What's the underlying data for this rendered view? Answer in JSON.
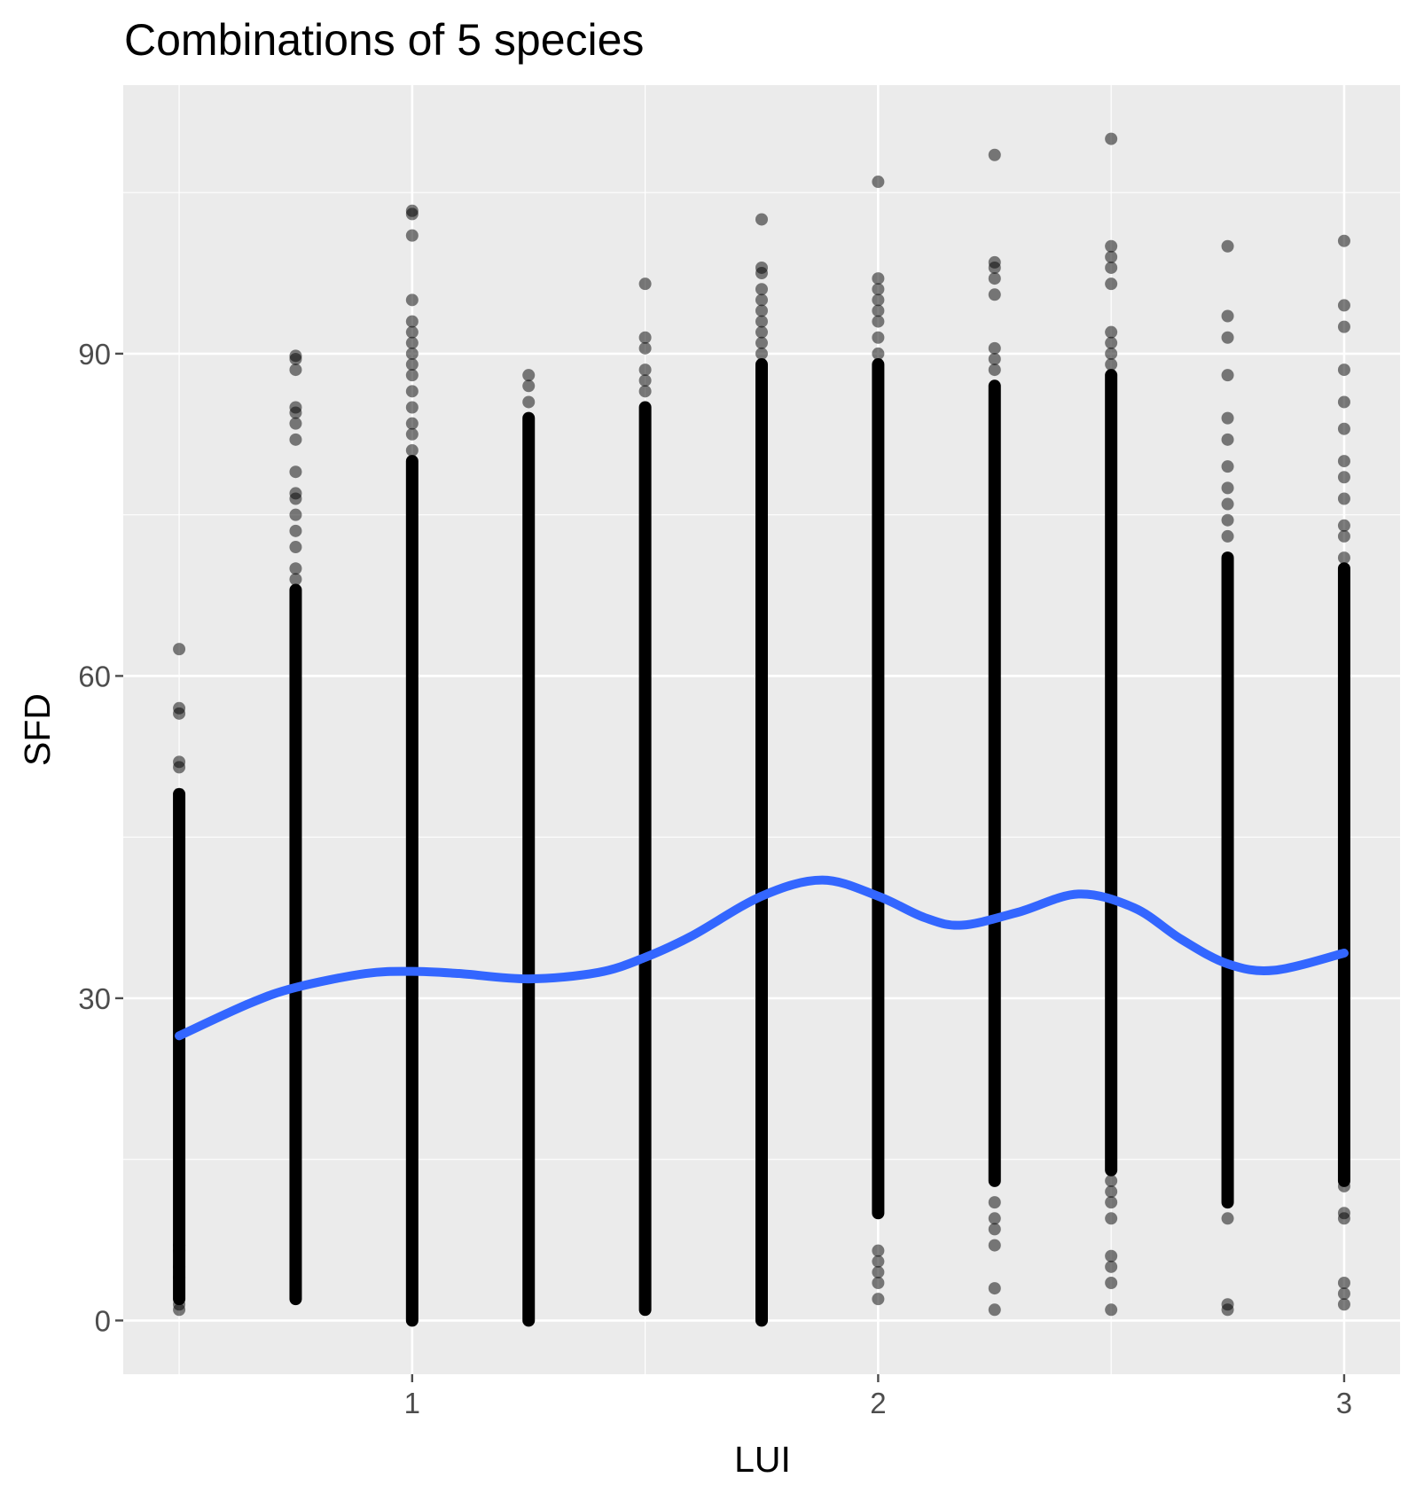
{
  "chart_data": {
    "type": "scatter",
    "title": "Combinations of 5 species",
    "xlabel": "LUI",
    "ylabel": "SFD",
    "xlim": [
      0.38,
      3.12
    ],
    "ylim": [
      -5,
      115
    ],
    "x_ticks": [
      1,
      2,
      3
    ],
    "y_ticks": [
      0,
      30,
      60,
      90
    ],
    "x_tick_labels": [
      "1",
      "2",
      "3"
    ],
    "y_tick_labels": [
      "0",
      "30",
      "60",
      "90"
    ],
    "grid": true,
    "colors": {
      "panel": "#ebebeb",
      "grid": "#ffffff",
      "points": "#000000",
      "smooth": "#3366ff",
      "tick": "#4d4d4d"
    },
    "point_alpha": 0.5,
    "point_columns": [
      {
        "x": 0.5,
        "dense_range": [
          2,
          49
        ],
        "outliers": [
          1,
          1.5,
          4,
          5,
          6.5,
          7,
          51.5,
          52,
          56.5,
          57,
          62.5
        ]
      },
      {
        "x": 0.75,
        "dense_range": [
          2,
          68
        ],
        "outliers": [
          69,
          70,
          72,
          73.5,
          75,
          76.5,
          77,
          79,
          82,
          83.5,
          84.5,
          85,
          88.5,
          89.5,
          89.8
        ]
      },
      {
        "x": 1.0,
        "dense_range": [
          0,
          80
        ],
        "outliers": [
          81,
          82.5,
          83.5,
          85,
          86.5,
          88,
          89,
          90,
          91,
          92,
          93,
          95,
          101,
          103,
          103.3
        ]
      },
      {
        "x": 1.25,
        "dense_range": [
          0,
          84
        ],
        "outliers": [
          85.5,
          87,
          88
        ]
      },
      {
        "x": 1.5,
        "dense_range": [
          1,
          85
        ],
        "outliers": [
          86.5,
          87.5,
          88.5,
          90.5,
          91.5,
          96.5
        ]
      },
      {
        "x": 1.75,
        "dense_range": [
          0,
          89
        ],
        "outliers": [
          90,
          91,
          92,
          93,
          94,
          95,
          96,
          97.5,
          98,
          102.5
        ]
      },
      {
        "x": 2.0,
        "dense_range": [
          10,
          89
        ],
        "outliers": [
          2,
          3.5,
          4.5,
          5.5,
          6.5,
          90,
          91.5,
          93,
          94,
          95,
          96,
          97,
          106
        ]
      },
      {
        "x": 2.25,
        "dense_range": [
          13,
          87
        ],
        "outliers": [
          1,
          3,
          7,
          8.5,
          9.5,
          11,
          88.5,
          89.5,
          90.5,
          95.5,
          97,
          98,
          98.5,
          108.5
        ]
      },
      {
        "x": 2.5,
        "dense_range": [
          14,
          88
        ],
        "outliers": [
          1,
          3.5,
          5,
          6,
          9.5,
          11,
          12,
          13,
          89,
          90,
          91,
          92,
          96.5,
          98,
          99,
          100,
          110
        ]
      },
      {
        "x": 2.75,
        "dense_range": [
          11,
          71
        ],
        "outliers": [
          1,
          1.5,
          9.5,
          73,
          74.5,
          76,
          77.5,
          79.5,
          82,
          84,
          88,
          91.5,
          93.5,
          100
        ]
      },
      {
        "x": 3.0,
        "dense_range": [
          13,
          70
        ],
        "outliers": [
          1.5,
          2.5,
          3.5,
          9.5,
          10,
          12.5,
          71,
          73,
          74,
          76.5,
          78.5,
          80,
          83,
          85.5,
          88.5,
          92.5,
          94.5,
          100.5
        ]
      }
    ],
    "smooth_line": {
      "x": [
        0.5,
        0.65,
        0.75,
        0.9,
        1.0,
        1.1,
        1.25,
        1.4,
        1.5,
        1.6,
        1.75,
        1.88,
        2.0,
        2.1,
        2.18,
        2.3,
        2.43,
        2.55,
        2.65,
        2.75,
        2.85,
        3.0
      ],
      "y": [
        26.5,
        29.5,
        31.0,
        32.3,
        32.5,
        32.3,
        31.8,
        32.4,
        33.8,
        35.8,
        39.5,
        41.0,
        39.5,
        37.5,
        36.8,
        38.0,
        39.7,
        38.4,
        35.5,
        33.2,
        32.6,
        34.2
      ]
    }
  }
}
